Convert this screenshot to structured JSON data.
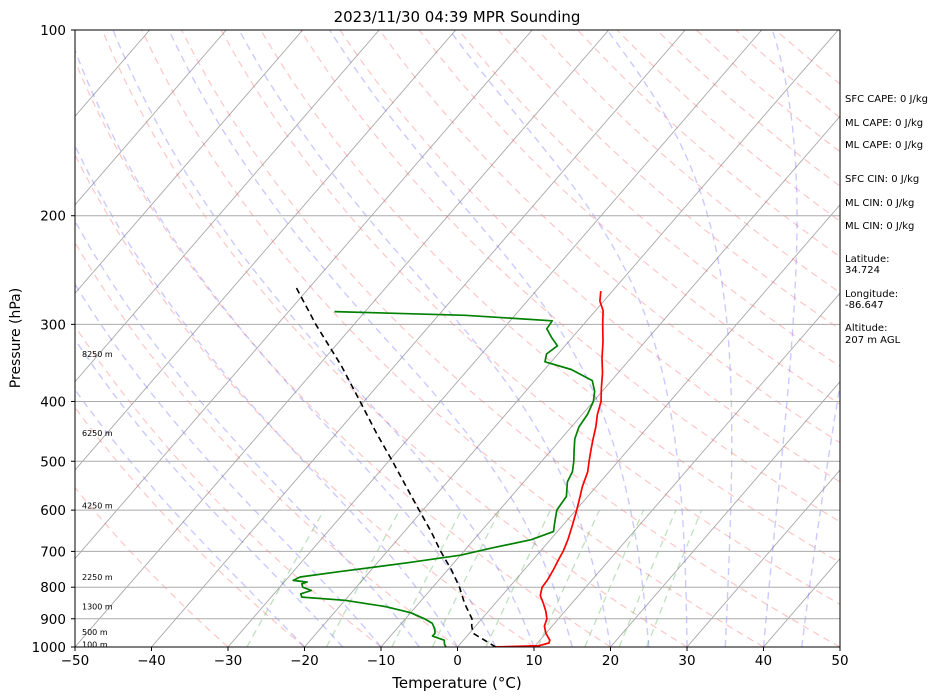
{
  "chart_data": {
    "type": "line",
    "title": "2023/11/30 04:39 MPR Sounding",
    "xlabel": "Temperature (°C)",
    "ylabel": "Pressure (hPa)",
    "xlim": [
      -50,
      50
    ],
    "ylim": [
      1000,
      100
    ],
    "y_scale": "log",
    "skew": "skew-T",
    "grid": true,
    "x_ticks": [
      -50,
      -40,
      -30,
      -20,
      -10,
      0,
      10,
      20,
      30,
      40,
      50
    ],
    "y_ticks": [
      100,
      200,
      300,
      400,
      500,
      600,
      700,
      800,
      900,
      1000
    ],
    "height_labels": [
      {
        "p": 335,
        "text": "8250 m"
      },
      {
        "p": 450,
        "text": "6250 m"
      },
      {
        "p": 590,
        "text": "4250 m"
      },
      {
        "p": 770,
        "text": "2250 m"
      },
      {
        "p": 860,
        "text": "1300 m"
      },
      {
        "p": 945,
        "text": "500 m"
      },
      {
        "p": 990,
        "text": "100 m"
      }
    ],
    "series": [
      {
        "color": "#ff0000",
        "points": [
          [
            1000,
            4.6
          ],
          [
            995,
            10.5
          ],
          [
            985,
            11.5
          ],
          [
            975,
            11.3
          ],
          [
            950,
            10.0
          ],
          [
            925,
            9.0
          ],
          [
            900,
            8.5
          ],
          [
            875,
            7.5
          ],
          [
            850,
            6.3
          ],
          [
            825,
            5.0
          ],
          [
            800,
            4.3
          ],
          [
            780,
            4.2
          ],
          [
            750,
            3.8
          ],
          [
            720,
            3.3
          ],
          [
            700,
            3.0
          ],
          [
            670,
            2.3
          ],
          [
            650,
            1.7
          ],
          [
            630,
            1.1
          ],
          [
            600,
            0.1
          ],
          [
            570,
            -1.0
          ],
          [
            550,
            -1.8
          ],
          [
            520,
            -2.8
          ],
          [
            500,
            -3.8
          ],
          [
            480,
            -4.8
          ],
          [
            460,
            -5.8
          ],
          [
            440,
            -6.8
          ],
          [
            420,
            -8.0
          ],
          [
            400,
            -9.0
          ],
          [
            380,
            -10.5
          ],
          [
            360,
            -12.0
          ],
          [
            340,
            -13.8
          ],
          [
            320,
            -15.5
          ],
          [
            300,
            -17.5
          ],
          [
            285,
            -19.0
          ],
          [
            275,
            -20.5
          ],
          [
            265,
            -21.5
          ]
        ]
      },
      {
        "color": "#008000",
        "points": [
          [
            1000,
            -1.5
          ],
          [
            990,
            -2.0
          ],
          [
            975,
            -2.5
          ],
          [
            960,
            -4.5
          ],
          [
            950,
            -4.5
          ],
          [
            935,
            -5.0
          ],
          [
            915,
            -6.0
          ],
          [
            900,
            -7.5
          ],
          [
            880,
            -10.0
          ],
          [
            860,
            -14.0
          ],
          [
            840,
            -20.0
          ],
          [
            830,
            -26.0
          ],
          [
            820,
            -26.5
          ],
          [
            810,
            -25.5
          ],
          [
            800,
            -27.0
          ],
          [
            790,
            -27.5
          ],
          [
            785,
            -27.0
          ],
          [
            780,
            -29.0
          ],
          [
            770,
            -28.5
          ],
          [
            755,
            -24.0
          ],
          [
            730,
            -16.0
          ],
          [
            710,
            -10.0
          ],
          [
            690,
            -6.5
          ],
          [
            670,
            -2.5
          ],
          [
            650,
            -0.5
          ],
          [
            630,
            -1.3
          ],
          [
            600,
            -2.5
          ],
          [
            570,
            -2.8
          ],
          [
            540,
            -4.3
          ],
          [
            520,
            -4.8
          ],
          [
            500,
            -5.8
          ],
          [
            480,
            -7.0
          ],
          [
            460,
            -8.2
          ],
          [
            440,
            -9.0
          ],
          [
            420,
            -9.3
          ],
          [
            400,
            -10.0
          ],
          [
            385,
            -11.0
          ],
          [
            370,
            -12.5
          ],
          [
            355,
            -16.5
          ],
          [
            345,
            -20.8
          ],
          [
            335,
            -21.5
          ],
          [
            325,
            -21.0
          ],
          [
            315,
            -22.7
          ],
          [
            305,
            -24.3
          ],
          [
            296,
            -24.5
          ],
          [
            290,
            -36.5
          ],
          [
            286,
            -54.0
          ]
        ]
      },
      {
        "color": "#000000",
        "dashed": true,
        "points": [
          [
            1000,
            5.0
          ],
          [
            950,
            0.5
          ],
          [
            925,
            -0.5
          ],
          [
            900,
            -1.3
          ],
          [
            850,
            -4.0
          ],
          [
            800,
            -6.5
          ],
          [
            750,
            -9.5
          ],
          [
            700,
            -13.0
          ],
          [
            650,
            -16.5
          ],
          [
            600,
            -20.5
          ],
          [
            550,
            -24.8
          ],
          [
            500,
            -29.5
          ],
          [
            450,
            -34.8
          ],
          [
            400,
            -40.5
          ],
          [
            350,
            -47.0
          ],
          [
            300,
            -55.0
          ],
          [
            260,
            -62.0
          ]
        ]
      }
    ],
    "annotations": [
      "SFC CAPE: 0 J/kg",
      "ML CAPE: 0 J/kg",
      "ML CAPE: 0 J/kg",
      "SFC CIN: 0 J/kg",
      "ML CIN: 0 J/kg",
      "ML CIN: 0 J/kg",
      "Latitude:",
      "34.724",
      "Longitude:",
      "-86.647",
      "Altitude:",
      "207 m AGL"
    ]
  }
}
